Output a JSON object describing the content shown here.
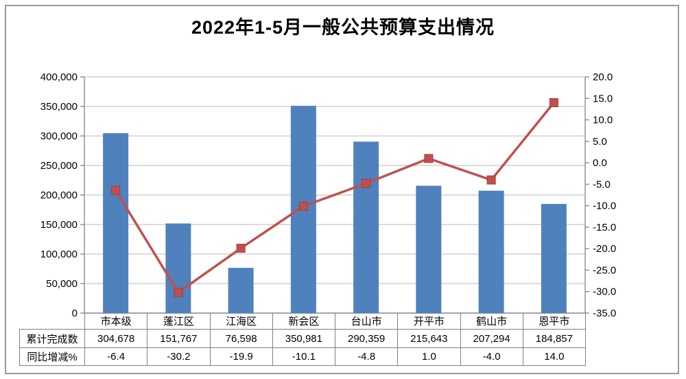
{
  "title": "2022年1-5月一般公共预算支出情况",
  "chart_data": {
    "type": "bar",
    "subtype": "bar-line-combo",
    "title": "2022年1-5月一般公共预算支出情况",
    "categories": [
      "市本级",
      "蓬江区",
      "江海区",
      "新会区",
      "台山市",
      "开平市",
      "鹤山市",
      "恩平市"
    ],
    "series": [
      {
        "name": "累计完成数",
        "type": "bar",
        "axis": "left",
        "values": [
          304678,
          151767,
          76598,
          350981,
          290359,
          215643,
          207294,
          184857
        ],
        "labels": [
          "304,678",
          "151,767",
          "76,598",
          "350,981",
          "290,359",
          "215,643",
          "207,294",
          "184,857"
        ],
        "color": "#4f81bd"
      },
      {
        "name": "同比增减%",
        "type": "line",
        "axis": "right",
        "values": [
          -6.4,
          -30.2,
          -19.9,
          -10.1,
          -4.8,
          1.0,
          -4.0,
          14.0
        ],
        "labels": [
          "-6.4",
          "-30.2",
          "-19.9",
          "-10.1",
          "-4.8",
          "1.0",
          "-4.0",
          "14.0"
        ],
        "color": "#c0504d",
        "marker": "square"
      }
    ],
    "left_axis": {
      "min": 0,
      "max": 400000,
      "step": 50000,
      "tick_labels_top_to_bottom": [
        "400,000",
        "350,000",
        "300,000",
        "250,000",
        "200,000",
        "150,000",
        "100,000",
        "50,000",
        "0"
      ]
    },
    "right_axis": {
      "min": -35.0,
      "max": 20.0,
      "step": 5.0,
      "tick_labels_top_to_bottom": [
        "20.0",
        "15.0",
        "10.0",
        "5.0",
        "0.0",
        "-5.0",
        "-10.0",
        "-15.0",
        "-20.0",
        "-25.0",
        "-30.0",
        "-35.0"
      ]
    },
    "grid": true,
    "legend": false
  },
  "table": {
    "row_headers": [
      "累计完成数",
      "同比增减%"
    ]
  },
  "colors": {
    "bar": "#4f81bd",
    "line": "#c0504d",
    "gridline": "#c6c6c6",
    "axis": "#8c8c8c",
    "table_border": "#7f7f7f",
    "text": "#000000",
    "outer_border": "#9a9a9a"
  }
}
